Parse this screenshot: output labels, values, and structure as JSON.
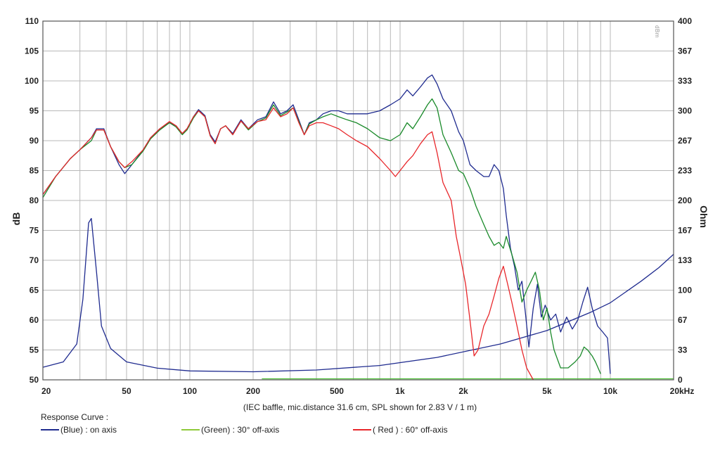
{
  "chart_data": {
    "type": "line",
    "caption": "(IEC baffle, mic.distance 31.6 cm, SPL shown for 2.83 V / 1 m)",
    "ylabel": "dB",
    "y2label": "Ohm",
    "x_scale": "log",
    "xlim": [
      20,
      20000
    ],
    "ylim": [
      50,
      110
    ],
    "y2lim": [
      0,
      400
    ],
    "x_ticks": [
      {
        "v": 20,
        "label": "20"
      },
      {
        "v": 50,
        "label": "50"
      },
      {
        "v": 100,
        "label": "100"
      },
      {
        "v": 200,
        "label": "200"
      },
      {
        "v": 500,
        "label": "500"
      },
      {
        "v": 1000,
        "label": "1k"
      },
      {
        "v": 2000,
        "label": "2k"
      },
      {
        "v": 5000,
        "label": "5k"
      },
      {
        "v": 10000,
        "label": "10k"
      },
      {
        "v": 20000,
        "label": "20kHz"
      }
    ],
    "y_ticks": [
      50,
      55,
      60,
      65,
      70,
      75,
      80,
      85,
      90,
      95,
      100,
      105,
      110
    ],
    "y2_ticks": [
      "0",
      "33",
      "67",
      "100",
      "133",
      "167",
      "200",
      "233",
      "267",
      "300",
      "333",
      "367",
      "400"
    ],
    "grid": true,
    "legend_title": "Response Curve :",
    "legend": [
      {
        "label": "(Blue)  : on axis",
        "color": "#1f2b8f"
      },
      {
        "label": "(Green) : 30° off-axis",
        "color": "#8fca3a"
      },
      {
        "label": "( Red ) : 60° off-axis",
        "color": "#e8262a"
      }
    ],
    "stamp": "dBm",
    "series": [
      {
        "color": "#1f2b8f",
        "axis": "left",
        "points": [
          [
            20,
            81
          ],
          [
            23,
            84
          ],
          [
            27,
            87
          ],
          [
            30,
            88.5
          ],
          [
            34,
            90.5
          ],
          [
            36,
            92
          ],
          [
            39,
            92
          ],
          [
            42,
            89
          ],
          [
            46,
            86
          ],
          [
            49,
            84.5
          ],
          [
            53,
            86
          ],
          [
            60,
            88.5
          ],
          [
            65,
            90.5
          ],
          [
            72,
            92
          ],
          [
            80,
            93
          ],
          [
            86,
            92.5
          ],
          [
            92,
            91.2
          ],
          [
            97,
            92
          ],
          [
            104,
            94
          ],
          [
            110,
            95.2
          ],
          [
            118,
            94.2
          ],
          [
            125,
            91
          ],
          [
            132,
            89.8
          ],
          [
            140,
            92
          ],
          [
            148,
            92.5
          ],
          [
            160,
            91.2
          ],
          [
            175,
            93.5
          ],
          [
            190,
            92
          ],
          [
            210,
            93.5
          ],
          [
            230,
            94
          ],
          [
            250,
            96.5
          ],
          [
            270,
            94.5
          ],
          [
            290,
            95
          ],
          [
            310,
            96
          ],
          [
            330,
            93.5
          ],
          [
            350,
            91
          ],
          [
            370,
            93
          ],
          [
            400,
            93.5
          ],
          [
            430,
            94.5
          ],
          [
            470,
            95
          ],
          [
            510,
            95
          ],
          [
            560,
            94.5
          ],
          [
            620,
            94.5
          ],
          [
            700,
            94.5
          ],
          [
            800,
            95
          ],
          [
            900,
            96
          ],
          [
            1000,
            97
          ],
          [
            1080,
            98.5
          ],
          [
            1150,
            97.5
          ],
          [
            1250,
            99
          ],
          [
            1350,
            100.5
          ],
          [
            1420,
            101
          ],
          [
            1500,
            99.5
          ],
          [
            1600,
            97
          ],
          [
            1750,
            95
          ],
          [
            1900,
            91.5
          ],
          [
            2000,
            90
          ],
          [
            2150,
            86
          ],
          [
            2300,
            85
          ],
          [
            2500,
            84
          ],
          [
            2650,
            84
          ],
          [
            2800,
            86
          ],
          [
            2950,
            85
          ],
          [
            3100,
            82
          ],
          [
            3200,
            77.5
          ],
          [
            3350,
            72
          ],
          [
            3500,
            69
          ],
          [
            3650,
            65
          ],
          [
            3800,
            66.5
          ],
          [
            3950,
            61
          ],
          [
            4100,
            55.5
          ],
          [
            4300,
            62
          ],
          [
            4500,
            66
          ],
          [
            4700,
            60.5
          ],
          [
            4900,
            62.5
          ],
          [
            5200,
            60
          ],
          [
            5500,
            61
          ],
          [
            5800,
            58
          ],
          [
            6200,
            60.5
          ],
          [
            6600,
            58.5
          ],
          [
            7000,
            60
          ],
          [
            7400,
            63
          ],
          [
            7800,
            65.5
          ],
          [
            8200,
            62
          ],
          [
            8700,
            59
          ],
          [
            9200,
            58
          ],
          [
            9700,
            57
          ],
          [
            10000,
            51
          ]
        ]
      },
      {
        "color": "#1a8a2a",
        "axis": "left",
        "points": [
          [
            20,
            80.5
          ],
          [
            23,
            84
          ],
          [
            27,
            87
          ],
          [
            30,
            88.5
          ],
          [
            34,
            90
          ],
          [
            36,
            91.8
          ],
          [
            39,
            91.8
          ],
          [
            42,
            89
          ],
          [
            46,
            86.5
          ],
          [
            49,
            85.5
          ],
          [
            53,
            86
          ],
          [
            60,
            88.3
          ],
          [
            65,
            90.3
          ],
          [
            72,
            91.8
          ],
          [
            80,
            93
          ],
          [
            86,
            92.3
          ],
          [
            92,
            91
          ],
          [
            97,
            91.8
          ],
          [
            104,
            93.8
          ],
          [
            110,
            95
          ],
          [
            118,
            94
          ],
          [
            125,
            90.8
          ],
          [
            132,
            89.5
          ],
          [
            140,
            92
          ],
          [
            148,
            92.5
          ],
          [
            160,
            91
          ],
          [
            175,
            93.3
          ],
          [
            190,
            91.8
          ],
          [
            210,
            93.2
          ],
          [
            230,
            93.8
          ],
          [
            250,
            96
          ],
          [
            270,
            94.2
          ],
          [
            290,
            94.8
          ],
          [
            310,
            95.5
          ],
          [
            330,
            93.2
          ],
          [
            350,
            91
          ],
          [
            370,
            92.8
          ],
          [
            400,
            93.5
          ],
          [
            430,
            94
          ],
          [
            470,
            94.5
          ],
          [
            510,
            94
          ],
          [
            560,
            93.5
          ],
          [
            620,
            93
          ],
          [
            700,
            92
          ],
          [
            800,
            90.5
          ],
          [
            900,
            90
          ],
          [
            1000,
            91
          ],
          [
            1080,
            93
          ],
          [
            1150,
            92
          ],
          [
            1250,
            94
          ],
          [
            1350,
            96
          ],
          [
            1420,
            97
          ],
          [
            1500,
            95.5
          ],
          [
            1600,
            91
          ],
          [
            1750,
            88
          ],
          [
            1900,
            85
          ],
          [
            2000,
            84.5
          ],
          [
            2150,
            82
          ],
          [
            2300,
            79
          ],
          [
            2500,
            76
          ],
          [
            2650,
            74
          ],
          [
            2800,
            72.5
          ],
          [
            2950,
            73
          ],
          [
            3100,
            72
          ],
          [
            3200,
            74
          ],
          [
            3400,
            71
          ],
          [
            3600,
            68
          ],
          [
            3800,
            63
          ],
          [
            4000,
            65
          ],
          [
            4200,
            66.5
          ],
          [
            4400,
            68
          ],
          [
            4600,
            65
          ],
          [
            4800,
            60
          ],
          [
            5000,
            62
          ],
          [
            5200,
            58
          ],
          [
            5400,
            55
          ],
          [
            5800,
            52
          ],
          [
            6300,
            52
          ],
          [
            6800,
            53
          ],
          [
            7200,
            54
          ],
          [
            7500,
            55.5
          ],
          [
            7800,
            55
          ],
          [
            8200,
            54
          ],
          [
            8500,
            53
          ],
          [
            9000,
            51
          ]
        ]
      },
      {
        "color": "#e8262a",
        "axis": "left",
        "points": [
          [
            20,
            81
          ],
          [
            23,
            84
          ],
          [
            27,
            87
          ],
          [
            30,
            88.5
          ],
          [
            34,
            90.5
          ],
          [
            36,
            91.8
          ],
          [
            39,
            91.8
          ],
          [
            42,
            89
          ],
          [
            46,
            86.5
          ],
          [
            49,
            85.5
          ],
          [
            53,
            86.5
          ],
          [
            60,
            88.5
          ],
          [
            65,
            90.5
          ],
          [
            72,
            92
          ],
          [
            80,
            93.2
          ],
          [
            86,
            92.5
          ],
          [
            92,
            91.2
          ],
          [
            97,
            92
          ],
          [
            104,
            94
          ],
          [
            110,
            95
          ],
          [
            118,
            94
          ],
          [
            125,
            90.8
          ],
          [
            132,
            89.5
          ],
          [
            140,
            92
          ],
          [
            148,
            92.5
          ],
          [
            160,
            91
          ],
          [
            175,
            93.3
          ],
          [
            190,
            92
          ],
          [
            210,
            93.2
          ],
          [
            230,
            93.5
          ],
          [
            250,
            95.5
          ],
          [
            270,
            94
          ],
          [
            290,
            94.5
          ],
          [
            310,
            95.5
          ],
          [
            330,
            93
          ],
          [
            350,
            91
          ],
          [
            370,
            92.5
          ],
          [
            400,
            93
          ],
          [
            430,
            93
          ],
          [
            470,
            92.5
          ],
          [
            510,
            92
          ],
          [
            560,
            91
          ],
          [
            620,
            90
          ],
          [
            700,
            89
          ],
          [
            800,
            87
          ],
          [
            900,
            85
          ],
          [
            950,
            84
          ],
          [
            1000,
            85
          ],
          [
            1080,
            86.5
          ],
          [
            1150,
            87.5
          ],
          [
            1250,
            89.5
          ],
          [
            1350,
            91
          ],
          [
            1420,
            91.5
          ],
          [
            1500,
            88
          ],
          [
            1600,
            83
          ],
          [
            1750,
            80
          ],
          [
            1850,
            74
          ],
          [
            1950,
            70
          ],
          [
            2050,
            66
          ],
          [
            2150,
            60
          ],
          [
            2250,
            54
          ],
          [
            2350,
            55
          ],
          [
            2500,
            59
          ],
          [
            2650,
            61
          ],
          [
            2800,
            64
          ],
          [
            2950,
            67
          ],
          [
            3100,
            69
          ],
          [
            3250,
            66
          ],
          [
            3400,
            63
          ],
          [
            3600,
            59
          ],
          [
            3800,
            55
          ],
          [
            4000,
            52
          ],
          [
            4300,
            50
          ]
        ]
      },
      {
        "color": "#1f2b8f",
        "axis": "right",
        "points": [
          [
            20,
            14
          ],
          [
            25,
            20
          ],
          [
            29,
            40
          ],
          [
            31,
            90
          ],
          [
            33,
            175
          ],
          [
            34,
            180
          ],
          [
            36,
            120
          ],
          [
            38,
            60
          ],
          [
            42,
            35
          ],
          [
            50,
            20
          ],
          [
            70,
            13
          ],
          [
            100,
            10
          ],
          [
            200,
            9
          ],
          [
            400,
            11
          ],
          [
            800,
            16
          ],
          [
            1500,
            25
          ],
          [
            3000,
            40
          ],
          [
            5000,
            55
          ],
          [
            8000,
            75
          ],
          [
            10000,
            86
          ],
          [
            14000,
            110
          ],
          [
            17000,
            125
          ],
          [
            20000,
            140
          ]
        ]
      }
    ]
  }
}
